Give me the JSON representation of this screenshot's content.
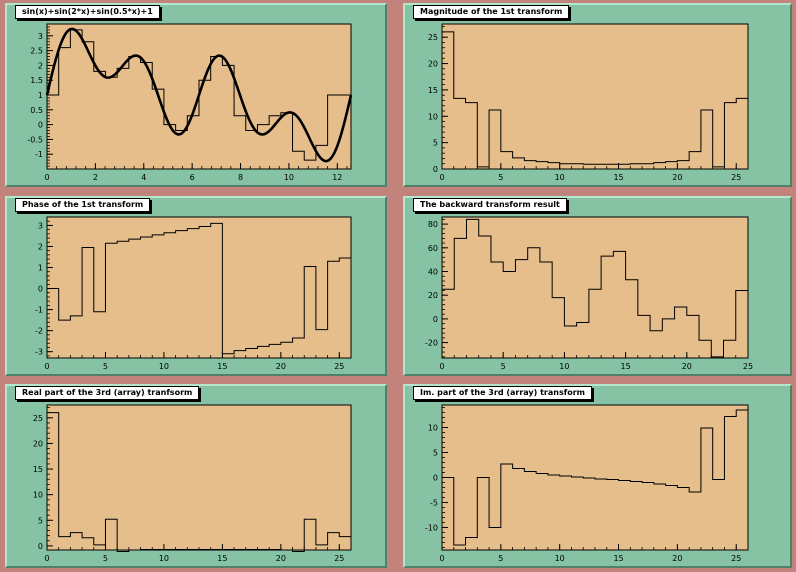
{
  "colors": {
    "canvas": "#c3837d",
    "pad": "#86c3a5",
    "frame": "#e5be8b",
    "line": "#000000"
  },
  "chart_data": [
    {
      "id": "p1",
      "type": "line",
      "title": "sin(x)+sin(2*x)+sin(0.5*x)+1",
      "xlim": [
        0,
        12.566
      ],
      "ylim": [
        -1.5,
        3.4
      ],
      "xticks": [
        0,
        2,
        4,
        6,
        8,
        10,
        12
      ],
      "yticks": [
        -1,
        -0.5,
        0,
        0.5,
        1,
        1.5,
        2,
        2.5,
        3
      ],
      "function": "sin(x)+sin(2*x)+sin(0.5*x)+1",
      "hist_edges_start": 0,
      "hist_bin_width": 0.4833,
      "hist_values": [
        1.0,
        2.6,
        3.2,
        2.8,
        1.8,
        1.6,
        1.9,
        2.3,
        2.1,
        1.2,
        0.0,
        -0.2,
        0.3,
        1.5,
        2.3,
        2.0,
        0.3,
        -0.2,
        0.0,
        0.3,
        0.4,
        -0.9,
        -1.2,
        -0.7,
        1.0,
        1.0
      ]
    },
    {
      "id": "p2",
      "type": "step",
      "title": "Magnitude of the 1st transform",
      "xlim": [
        0,
        26
      ],
      "ylim": [
        0,
        27.5
      ],
      "xticks": [
        0,
        5,
        10,
        15,
        20,
        25
      ],
      "yticks": [
        0,
        5,
        10,
        15,
        20,
        25
      ],
      "values": [
        26,
        13.4,
        12.6,
        0.4,
        11.2,
        3.3,
        2.1,
        1.6,
        1.4,
        1.2,
        1.0,
        1.0,
        0.9,
        0.9,
        0.9,
        0.9,
        1.0,
        1.0,
        1.2,
        1.4,
        1.6,
        3.3,
        11.2,
        0.4,
        12.6,
        13.4
      ]
    },
    {
      "id": "p3",
      "type": "step",
      "title": "Phase of the 1st transform",
      "xlim": [
        0,
        26
      ],
      "ylim": [
        -3.3,
        3.4
      ],
      "xticks": [
        0,
        5,
        10,
        15,
        20,
        25
      ],
      "yticks": [
        -3,
        -2,
        -1,
        0,
        1,
        2,
        3
      ],
      "values": [
        0.0,
        -1.5,
        -1.3,
        1.95,
        -1.1,
        2.15,
        2.25,
        2.35,
        2.45,
        2.55,
        2.65,
        2.75,
        2.85,
        2.95,
        3.1,
        -3.1,
        -2.95,
        -2.85,
        -2.75,
        -2.65,
        -2.55,
        -2.35,
        1.05,
        -1.95,
        1.3,
        1.45
      ]
    },
    {
      "id": "p4",
      "type": "step",
      "title": "The backward transform result",
      "xlim": [
        0,
        25
      ],
      "ylim": [
        -33,
        86
      ],
      "xticks": [
        0,
        5,
        10,
        15,
        20,
        25
      ],
      "yticks": [
        -20,
        0,
        20,
        40,
        60,
        80
      ],
      "values": [
        25,
        68,
        84,
        70,
        48,
        40,
        50,
        60,
        48,
        18,
        -6,
        -3,
        25,
        53,
        57,
        33,
        3,
        -10,
        0,
        10,
        3,
        -18,
        -32,
        -18,
        24
      ]
    },
    {
      "id": "p5",
      "type": "step",
      "title": "Real part of the 3rd (array) tranfsorm",
      "xlim": [
        0,
        26
      ],
      "ylim": [
        -0.8,
        27.5
      ],
      "xticks": [
        0,
        5,
        10,
        15,
        20,
        25
      ],
      "yticks": [
        0,
        5,
        10,
        15,
        20,
        25
      ],
      "values": [
        26,
        1.8,
        2.6,
        1.6,
        0.2,
        5.2,
        -1.1,
        -0.8,
        -0.7,
        -0.7,
        -0.7,
        -0.7,
        -0.7,
        -0.7,
        -0.7,
        -0.7,
        -0.7,
        -0.7,
        -0.7,
        -0.7,
        -0.8,
        -1.1,
        5.2,
        0.2,
        2.6,
        1.8
      ]
    },
    {
      "id": "p6",
      "type": "step",
      "title": "Im. part of the 3rd (array) transform",
      "xlim": [
        0,
        26
      ],
      "ylim": [
        -14.5,
        14.5
      ],
      "xticks": [
        0,
        5,
        10,
        15,
        20,
        25
      ],
      "yticks": [
        -10,
        -5,
        0,
        5,
        10
      ],
      "values": [
        0,
        -13.5,
        -12,
        0,
        -10,
        2.7,
        1.8,
        1.2,
        0.8,
        0.5,
        0.3,
        0.1,
        -0.1,
        -0.3,
        -0.4,
        -0.6,
        -0.8,
        -1.0,
        -1.3,
        -1.6,
        -2.0,
        -2.9,
        9.9,
        -0.4,
        12.2,
        13.5
      ]
    }
  ]
}
